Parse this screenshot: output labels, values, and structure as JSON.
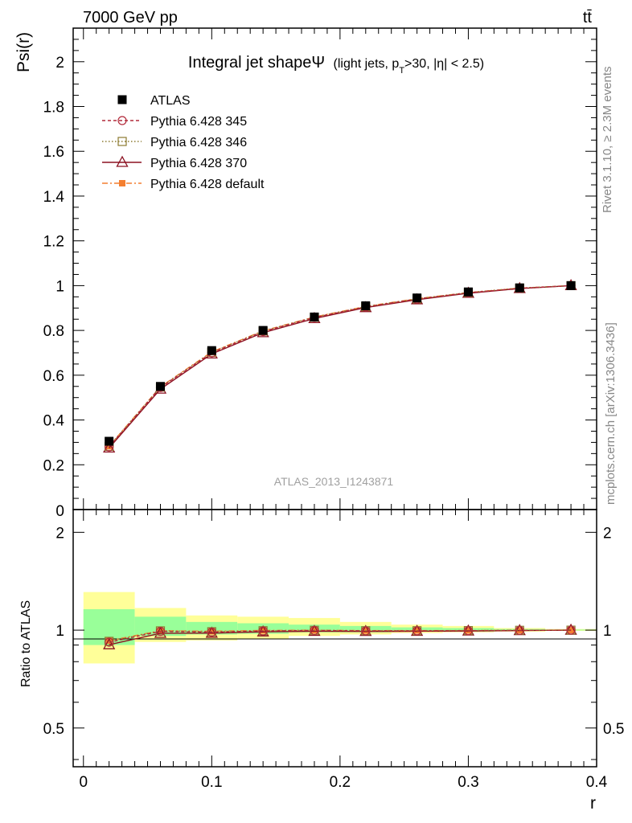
{
  "header": {
    "energy_label": "7000 GeV pp",
    "process_label": "tt̄",
    "side_top": "Rivet 3.1.10, ≥ 2.3M events",
    "side_bottom": "mcplots.cern.ch [arXiv:1306.3436]",
    "analysis_id": "ATLAS_2013_I1243871"
  },
  "title": {
    "main": "Integral jet shapeΨ",
    "sub_prefix": "(light jets, p",
    "sub_subscript": "T",
    "sub_suffix": ">30, |η| < 2.5)"
  },
  "colors": {
    "atlas": "#000000",
    "py345": "#b22a3a",
    "py346": "#8c7a30",
    "py370": "#8b1020",
    "pydefault": "#f47f30",
    "band_outer": "#ffff99",
    "band_inner": "#99ff99"
  },
  "chart_data": [
    {
      "type": "line",
      "ylabel": "Psi(r)",
      "xlim": [
        -0.008,
        0.4
      ],
      "ylim": [
        0,
        2.15
      ],
      "y_ticks": [
        "0.2",
        "0.4",
        "0.6",
        "0.8",
        "1",
        "1.2",
        "1.4",
        "1.6",
        "1.8",
        "2"
      ],
      "y_tick_values": [
        0.2,
        0.4,
        0.6,
        0.8,
        1.0,
        1.2,
        1.4,
        1.6,
        1.8,
        2.0
      ],
      "y_zero_label": "0",
      "legend_position": "top-left",
      "x": [
        0.02,
        0.06,
        0.1,
        0.14,
        0.18,
        0.22,
        0.26,
        0.3,
        0.34,
        0.38
      ],
      "series": [
        {
          "name": "ATLAS",
          "key": "atlas",
          "marker": "filled-square",
          "values": [
            0.305,
            0.55,
            0.71,
            0.8,
            0.86,
            0.91,
            0.945,
            0.972,
            0.99,
            1.0
          ]
        },
        {
          "name": "Pythia 6.428 345",
          "key": "py345",
          "marker": "open-circle",
          "dash": "4,3",
          "values": [
            0.28,
            0.545,
            0.7,
            0.795,
            0.858,
            0.905,
            0.94,
            0.968,
            0.988,
            1.0
          ]
        },
        {
          "name": "Pythia 6.428 346",
          "key": "py346",
          "marker": "open-square",
          "dash": "1.5,2.5",
          "values": [
            0.282,
            0.547,
            0.702,
            0.797,
            0.859,
            0.906,
            0.941,
            0.969,
            0.989,
            1.0
          ]
        },
        {
          "name": "Pythia 6.428 370",
          "key": "py370",
          "marker": "open-triangle",
          "dash": "",
          "values": [
            0.275,
            0.538,
            0.695,
            0.79,
            0.853,
            0.902,
            0.937,
            0.966,
            0.987,
            1.0
          ]
        },
        {
          "name": "Pythia 6.428 default",
          "key": "pydefault",
          "marker": "filled-small-square",
          "dash": "7,3,2,3",
          "values": [
            0.283,
            0.548,
            0.704,
            0.798,
            0.86,
            0.907,
            0.942,
            0.969,
            0.989,
            1.0
          ]
        }
      ]
    },
    {
      "type": "line",
      "ylabel": "Ratio to ATLAS",
      "xlabel": "r",
      "xlim": [
        -0.008,
        0.4
      ],
      "ylim": [
        0.38,
        2.35
      ],
      "y_ticks": [
        "0.5",
        "1",
        "2"
      ],
      "y_tick_values": [
        0.5,
        1.0,
        2.0
      ],
      "x_ticks": [
        "0",
        "0.1",
        "0.2",
        "0.3",
        "0.4"
      ],
      "x_tick_values": [
        0.0,
        0.1,
        0.2,
        0.3,
        0.4
      ],
      "bins": [
        [
          0.0,
          0.04
        ],
        [
          0.04,
          0.08
        ],
        [
          0.08,
          0.12
        ],
        [
          0.12,
          0.16
        ],
        [
          0.16,
          0.2
        ],
        [
          0.2,
          0.24
        ],
        [
          0.24,
          0.28
        ],
        [
          0.28,
          0.32
        ],
        [
          0.32,
          0.36
        ],
        [
          0.36,
          0.4
        ]
      ],
      "band_outer": [
        [
          0.79,
          1.31
        ],
        [
          0.92,
          1.17
        ],
        [
          0.93,
          1.11
        ],
        [
          0.94,
          1.1
        ],
        [
          0.96,
          1.09
        ],
        [
          0.97,
          1.06
        ],
        [
          0.98,
          1.04
        ],
        [
          0.985,
          1.03
        ],
        [
          0.99,
          1.015
        ],
        [
          0.995,
          1.008
        ]
      ],
      "band_inner": [
        [
          0.9,
          1.16
        ],
        [
          0.96,
          1.1
        ],
        [
          0.97,
          1.06
        ],
        [
          0.975,
          1.05
        ],
        [
          0.985,
          1.04
        ],
        [
          0.985,
          1.03
        ],
        [
          0.99,
          1.02
        ],
        [
          0.99,
          1.015
        ],
        [
          0.995,
          1.008
        ],
        [
          0.998,
          1.004
        ]
      ],
      "x": [
        0.02,
        0.06,
        0.1,
        0.14,
        0.18,
        0.22,
        0.26,
        0.3,
        0.34,
        0.38
      ],
      "series": [
        {
          "name": "Pythia 6.428 345",
          "key": "py345",
          "marker": "open-circle",
          "dash": "4,3",
          "values": [
            0.918,
            0.991,
            0.986,
            0.994,
            0.998,
            0.995,
            0.995,
            0.996,
            0.998,
            1.0
          ]
        },
        {
          "name": "Pythia 6.428 346",
          "key": "py346",
          "marker": "open-square",
          "dash": "1.5,2.5",
          "values": [
            0.924,
            0.995,
            0.989,
            0.996,
            0.999,
            0.996,
            0.996,
            0.997,
            0.999,
            1.0
          ]
        },
        {
          "name": "Pythia 6.428 370",
          "key": "py370",
          "marker": "open-triangle",
          "dash": "",
          "values": [
            0.902,
            0.978,
            0.979,
            0.988,
            0.992,
            0.991,
            0.992,
            0.994,
            0.997,
            1.0
          ]
        },
        {
          "name": "Pythia 6.428 default",
          "key": "pydefault",
          "marker": "filled-small-square",
          "dash": "7,3,2,3",
          "values": [
            0.928,
            0.996,
            0.992,
            0.998,
            1.0,
            0.997,
            0.997,
            0.997,
            0.999,
            1.0
          ]
        }
      ]
    }
  ]
}
